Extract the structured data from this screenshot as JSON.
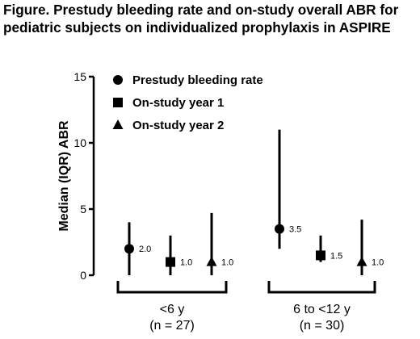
{
  "figure": {
    "title_line1": "Figure. Prestudy bleeding rate and on-study overall ABR for",
    "title_line2": "pediatric subjects on individualized prophylaxis in ASPIRE"
  },
  "chart_data": {
    "type": "scatter",
    "ylabel": "Median (IQR) ABR",
    "ylim": [
      0,
      15
    ],
    "yticks": [
      0,
      5,
      10,
      15
    ],
    "grid": false,
    "legend_position": "top-left",
    "groups": [
      {
        "label_line1": "<6 y",
        "label_line2": "(n = 27)"
      },
      {
        "label_line1": "6 to <12 y",
        "label_line2": "(n = 30)"
      }
    ],
    "series": [
      {
        "name": "Prestudy bleeding rate",
        "marker": "circle",
        "points": [
          {
            "median": 2.0,
            "q1": 0.0,
            "q3": 4.0,
            "label": "2.0"
          },
          {
            "median": 3.5,
            "q1": 2.0,
            "q3": 11.0,
            "label": "3.5"
          }
        ]
      },
      {
        "name": "On-study year 1",
        "marker": "square",
        "points": [
          {
            "median": 1.0,
            "q1": 0.0,
            "q3": 3.0,
            "label": "1.0"
          },
          {
            "median": 1.5,
            "q1": 1.0,
            "q3": 3.0,
            "label": "1.5"
          }
        ]
      },
      {
        "name": "On-study year 2",
        "marker": "triangle",
        "points": [
          {
            "median": 1.0,
            "q1": 0.0,
            "q3": 4.7,
            "label": "1.0"
          },
          {
            "median": 1.0,
            "q1": 0.0,
            "q3": 4.2,
            "label": "1.0"
          }
        ]
      }
    ]
  }
}
